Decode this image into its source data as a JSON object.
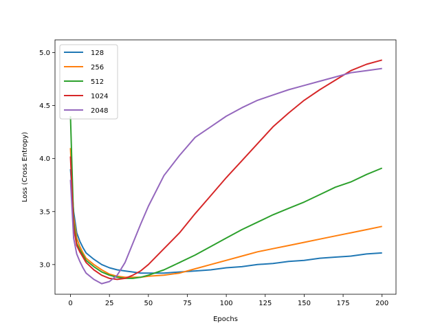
{
  "chart_data": {
    "type": "line",
    "title": "",
    "xlabel": "Epochs",
    "ylabel": "Loss (Cross Entropy)",
    "xlim": [
      -9.95,
      208.95
    ],
    "ylim": [
      2.72,
      5.12
    ],
    "xticks": [
      0,
      25,
      50,
      75,
      100,
      125,
      150,
      175,
      200
    ],
    "yticks": [
      3.0,
      3.5,
      4.0,
      4.5,
      5.0
    ],
    "grid": false,
    "legend_position": "top-left",
    "series": [
      {
        "name": "128",
        "color": "#1f77b4",
        "x": [
          0,
          2,
          4,
          6,
          8,
          10,
          15,
          20,
          25,
          30,
          35,
          40,
          45,
          50,
          60,
          70,
          80,
          90,
          100,
          110,
          120,
          130,
          140,
          150,
          160,
          170,
          180,
          190,
          200
        ],
        "y": [
          3.9,
          3.5,
          3.3,
          3.22,
          3.16,
          3.11,
          3.05,
          3.0,
          2.97,
          2.95,
          2.94,
          2.93,
          2.92,
          2.92,
          2.92,
          2.93,
          2.94,
          2.95,
          2.97,
          2.98,
          3.0,
          3.01,
          3.03,
          3.04,
          3.06,
          3.07,
          3.08,
          3.1,
          3.11
        ]
      },
      {
        "name": "256",
        "color": "#ff7f0e",
        "x": [
          0,
          2,
          4,
          6,
          8,
          10,
          15,
          20,
          25,
          30,
          35,
          40,
          45,
          50,
          60,
          70,
          80,
          90,
          100,
          110,
          120,
          130,
          140,
          150,
          160,
          170,
          180,
          190,
          200
        ],
        "y": [
          4.1,
          3.45,
          3.25,
          3.17,
          3.11,
          3.06,
          3.0,
          2.95,
          2.91,
          2.89,
          2.88,
          2.88,
          2.88,
          2.89,
          2.9,
          2.92,
          2.96,
          3.0,
          3.04,
          3.08,
          3.12,
          3.15,
          3.18,
          3.21,
          3.24,
          3.27,
          3.3,
          3.33,
          3.36
        ]
      },
      {
        "name": "512",
        "color": "#2ca02c",
        "x": [
          0,
          2,
          4,
          6,
          8,
          10,
          15,
          20,
          25,
          30,
          35,
          40,
          45,
          50,
          60,
          70,
          80,
          90,
          100,
          110,
          120,
          130,
          140,
          150,
          160,
          170,
          180,
          190,
          200
        ],
        "y": [
          4.4,
          3.4,
          3.2,
          3.14,
          3.09,
          3.04,
          2.98,
          2.93,
          2.9,
          2.88,
          2.87,
          2.87,
          2.88,
          2.9,
          2.95,
          3.02,
          3.09,
          3.17,
          3.25,
          3.33,
          3.4,
          3.47,
          3.53,
          3.59,
          3.66,
          3.73,
          3.78,
          3.85,
          3.91
        ]
      },
      {
        "name": "1024",
        "color": "#d62728",
        "x": [
          0,
          2,
          4,
          6,
          8,
          10,
          15,
          20,
          25,
          30,
          35,
          40,
          45,
          50,
          60,
          70,
          80,
          90,
          100,
          110,
          120,
          130,
          140,
          150,
          160,
          170,
          180,
          190,
          200
        ],
        "y": [
          4.02,
          3.35,
          3.18,
          3.12,
          3.07,
          3.02,
          2.95,
          2.9,
          2.87,
          2.86,
          2.87,
          2.9,
          2.94,
          3.0,
          3.15,
          3.3,
          3.48,
          3.65,
          3.82,
          3.98,
          4.14,
          4.3,
          4.43,
          4.55,
          4.65,
          4.74,
          4.83,
          4.89,
          4.93
        ]
      },
      {
        "name": "2048",
        "color": "#9467bd",
        "x": [
          0,
          2,
          4,
          6,
          8,
          10,
          15,
          20,
          25,
          30,
          35,
          40,
          45,
          50,
          60,
          70,
          80,
          90,
          100,
          110,
          120,
          130,
          140,
          150,
          160,
          170,
          180,
          190,
          200
        ],
        "y": [
          3.8,
          3.25,
          3.1,
          3.03,
          2.97,
          2.92,
          2.86,
          2.82,
          2.84,
          2.9,
          3.02,
          3.2,
          3.38,
          3.55,
          3.84,
          4.03,
          4.2,
          4.3,
          4.4,
          4.48,
          4.55,
          4.6,
          4.65,
          4.69,
          4.73,
          4.77,
          4.81,
          4.83,
          4.85
        ]
      }
    ]
  }
}
